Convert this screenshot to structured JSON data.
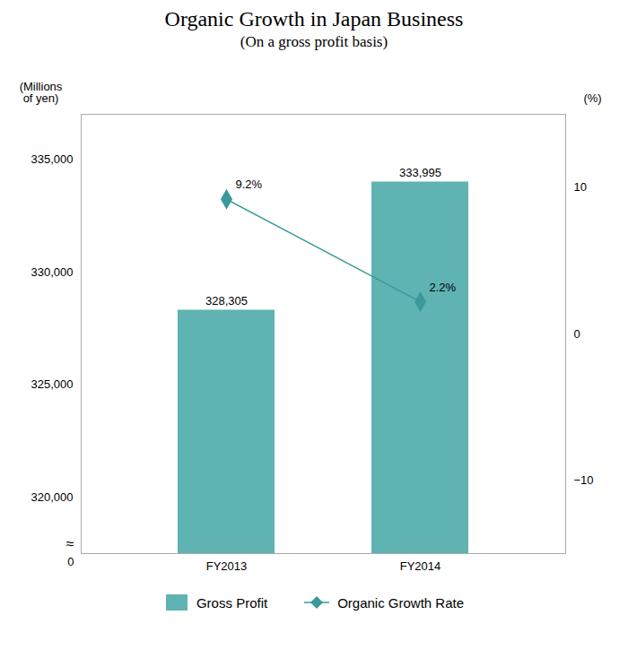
{
  "chart_data": {
    "type": "bar",
    "title": "Organic Growth in Japan Business",
    "subtitle": "(On a gross profit basis)",
    "categories": [
      "FY2013",
      "FY2014"
    ],
    "series": [
      {
        "name": "Gross Profit",
        "type": "bar",
        "color": "#5fb3b3",
        "values": [
          328305,
          333995
        ],
        "value_labels": [
          "328,305",
          "333,995"
        ]
      },
      {
        "name": "Organic Growth Rate",
        "type": "line",
        "axis": "y2",
        "color": "#3a9a9a",
        "marker": "diamond",
        "values": [
          9.2,
          2.2
        ],
        "value_labels": [
          "9.2%",
          "2.2%"
        ]
      }
    ],
    "y_label": "(Millions\nof yen)",
    "y2_label": "(%)",
    "ylim": [
      317500,
      337000
    ],
    "yticks": [
      {
        "value": 320000,
        "label": "320,000"
      },
      {
        "value": 325000,
        "label": "325,000"
      },
      {
        "value": 330000,
        "label": "330,000"
      },
      {
        "value": 335000,
        "label": "335,000"
      }
    ],
    "y2lim": [
      -15,
      15
    ],
    "y2ticks": [
      {
        "value": -10,
        "label": "−10"
      },
      0,
      10
    ],
    "annotations": [
      {
        "text": "0"
      },
      {
        "text": "≈"
      }
    ],
    "data_labels": true,
    "legend": "bottom",
    "grid": false
  }
}
